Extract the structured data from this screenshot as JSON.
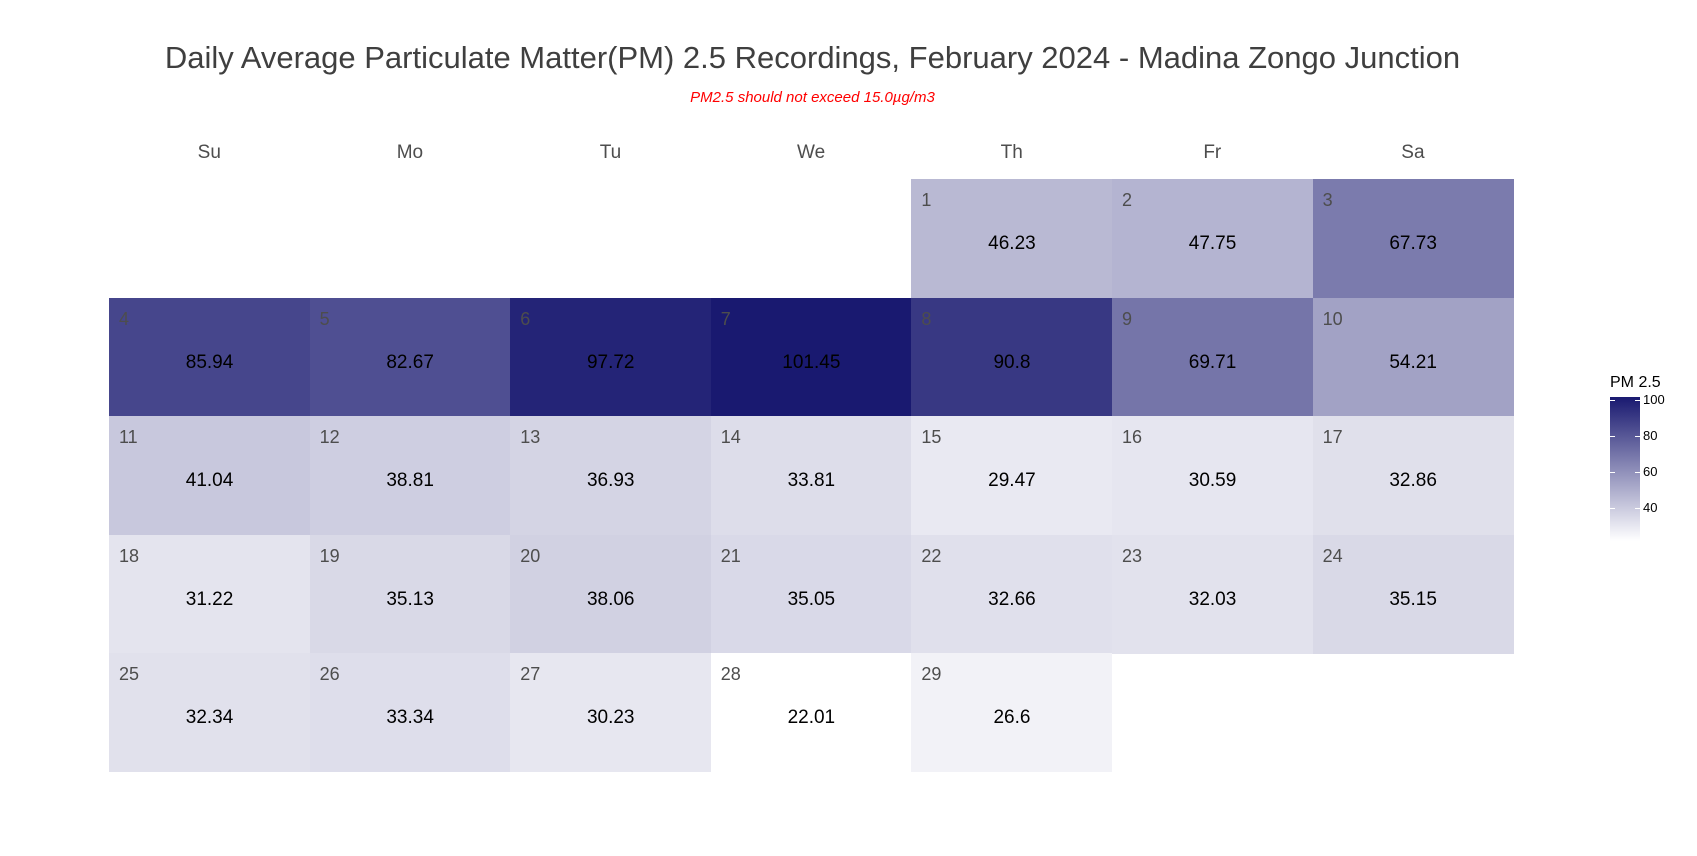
{
  "chart_data": {
    "type": "heatmap",
    "title": "Daily Average Particulate Matter(PM) 2.5 Recordings, February 2024 - Madina Zongo Junction",
    "subtitle": "PM2.5 should not exceed 15.0µg/m3",
    "weekdays": [
      "Su",
      "Mo",
      "Tu",
      "We",
      "Th",
      "Fr",
      "Sa"
    ],
    "first_weekday_index": 4,
    "days": [
      {
        "day": 1,
        "value": 46.23
      },
      {
        "day": 2,
        "value": 47.75
      },
      {
        "day": 3,
        "value": 67.73
      },
      {
        "day": 4,
        "value": 85.94
      },
      {
        "day": 5,
        "value": 82.67
      },
      {
        "day": 6,
        "value": 97.72
      },
      {
        "day": 7,
        "value": 101.45
      },
      {
        "day": 8,
        "value": 90.8
      },
      {
        "day": 9,
        "value": 69.71
      },
      {
        "day": 10,
        "value": 54.21
      },
      {
        "day": 11,
        "value": 41.04
      },
      {
        "day": 12,
        "value": 38.81
      },
      {
        "day": 13,
        "value": 36.93
      },
      {
        "day": 14,
        "value": 33.81
      },
      {
        "day": 15,
        "value": 29.47
      },
      {
        "day": 16,
        "value": 30.59
      },
      {
        "day": 17,
        "value": 32.86
      },
      {
        "day": 18,
        "value": 31.22
      },
      {
        "day": 19,
        "value": 35.13
      },
      {
        "day": 20,
        "value": 38.06
      },
      {
        "day": 21,
        "value": 35.05
      },
      {
        "day": 22,
        "value": 32.66
      },
      {
        "day": 23,
        "value": 32.03
      },
      {
        "day": 24,
        "value": 35.15
      },
      {
        "day": 25,
        "value": 32.34
      },
      {
        "day": 26,
        "value": 33.34
      },
      {
        "day": 27,
        "value": 30.23
      },
      {
        "day": 28,
        "value": 22.01
      },
      {
        "day": 29,
        "value": 26.6
      }
    ],
    "legend": {
      "title": "PM 2.5",
      "ticks": [
        40,
        60,
        80,
        100
      ],
      "range": [
        22.01,
        101.45
      ],
      "color_low": "#ffffff",
      "color_high": "#191970"
    }
  }
}
